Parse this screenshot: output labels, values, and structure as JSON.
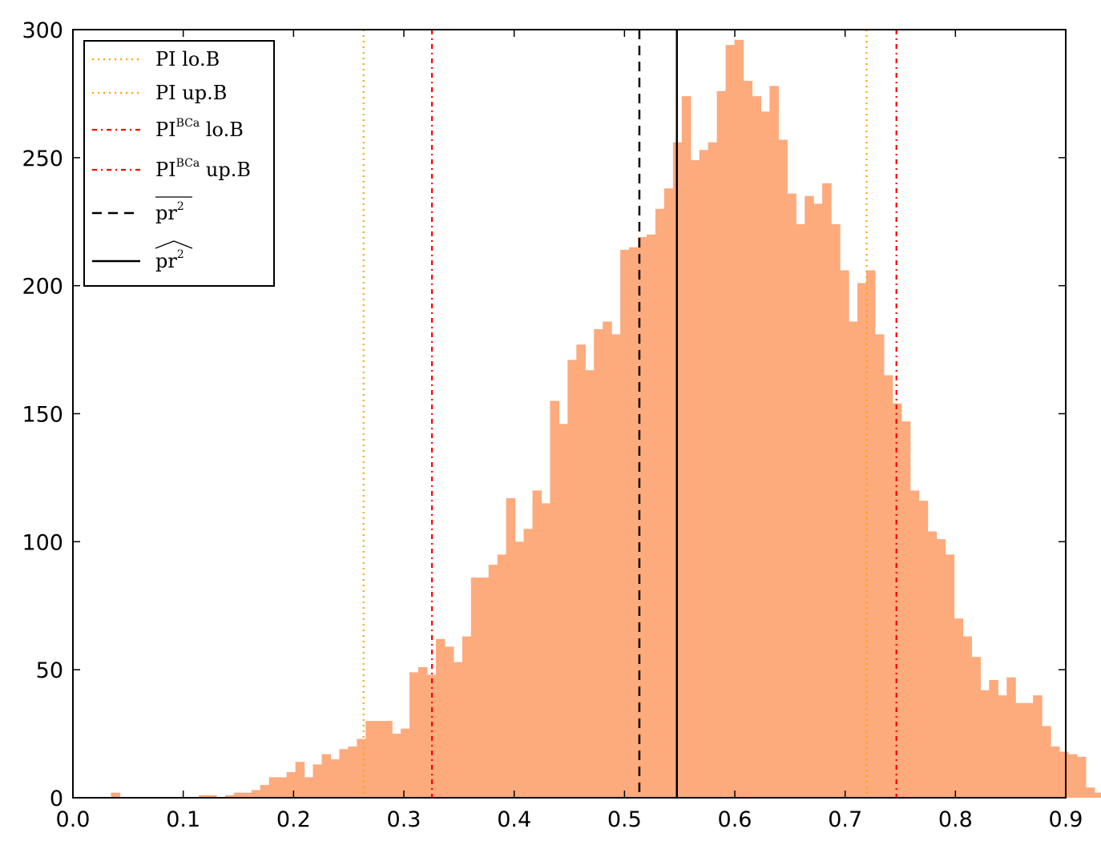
{
  "chart_data": {
    "type": "bar",
    "title": "",
    "xlabel": "",
    "ylabel": "",
    "xlim": [
      0.0,
      0.9
    ],
    "ylim": [
      0,
      300
    ],
    "grid": false,
    "legend_position": "top-left",
    "xticks": [
      "0.0",
      "0.1",
      "0.2",
      "0.3",
      "0.4",
      "0.5",
      "0.6",
      "0.7",
      "0.8",
      "0.9"
    ],
    "xtick_values": [
      0.0,
      0.1,
      0.2,
      0.3,
      0.4,
      0.5,
      0.6,
      0.7,
      0.8,
      0.9
    ],
    "yticks": [
      "0",
      "50",
      "100",
      "150",
      "200",
      "250",
      "300"
    ],
    "ytick_values": [
      0,
      50,
      100,
      150,
      200,
      250,
      300
    ],
    "histogram": {
      "color": "#fdaa7d",
      "bin_start": 0.0345,
      "bin_width": 0.00796,
      "counts": [
        2,
        0,
        0,
        0,
        0,
        0,
        0,
        0,
        0,
        0,
        1,
        1,
        0,
        1,
        2,
        2,
        3,
        5,
        8,
        8,
        10,
        14,
        8,
        13,
        17,
        15,
        19,
        20,
        23,
        30,
        30,
        30,
        25,
        27,
        49,
        51,
        48,
        62,
        59,
        53,
        63,
        86,
        86,
        91,
        95,
        117,
        100,
        105,
        120,
        115,
        155,
        146,
        171,
        177,
        167,
        183,
        186,
        181,
        214,
        215,
        219,
        220,
        230,
        238,
        256,
        274,
        249,
        253,
        256,
        276,
        294,
        296,
        280,
        274,
        268,
        278,
        257,
        236,
        224,
        235,
        232,
        240,
        224,
        206,
        186,
        201,
        206,
        181,
        165,
        154,
        147,
        120,
        116,
        104,
        101,
        95,
        70,
        63,
        55,
        42,
        46,
        40,
        47,
        37,
        37,
        40,
        28,
        20,
        18,
        17,
        16,
        4,
        2,
        3,
        1,
        0,
        0,
        0,
        0,
        0,
        0,
        0,
        0,
        0,
        0,
        0
      ]
    },
    "vlines": [
      {
        "x": 0.2635,
        "color": "#ffa500",
        "style": "dotted"
      },
      {
        "x": 0.3255,
        "color": "#ff0000",
        "style": "dashdot"
      },
      {
        "x": 0.5135,
        "color": "#000000",
        "style": "dashed"
      },
      {
        "x": 0.5475,
        "color": "#000000",
        "style": "solid"
      },
      {
        "x": 0.7195,
        "color": "#ffa500",
        "style": "dotted"
      },
      {
        "x": 0.7465,
        "color": "#ff0000",
        "style": "dashdot"
      }
    ],
    "legend": [
      {
        "text": "PI lo.B",
        "sup": "",
        "text2": "",
        "color": "#ffa500",
        "style": "dotted"
      },
      {
        "text": "PI up.B",
        "sup": "",
        "text2": "",
        "color": "#ffa500",
        "style": "dotted"
      },
      {
        "text": "PI",
        "sup": "BCa",
        "text2": " lo.B",
        "color": "#ff0000",
        "style": "dashdot"
      },
      {
        "text": "PI",
        "sup": "BCa",
        "text2": " up.B",
        "color": "#ff0000",
        "style": "dashdot"
      },
      {
        "text": "pr",
        "sup": "2",
        "text2": "",
        "accent": "overline",
        "color": "#000000",
        "style": "dashed"
      },
      {
        "text": "pr",
        "sup": "2",
        "text2": "",
        "accent": "hat",
        "color": "#000000",
        "style": "solid"
      }
    ]
  }
}
